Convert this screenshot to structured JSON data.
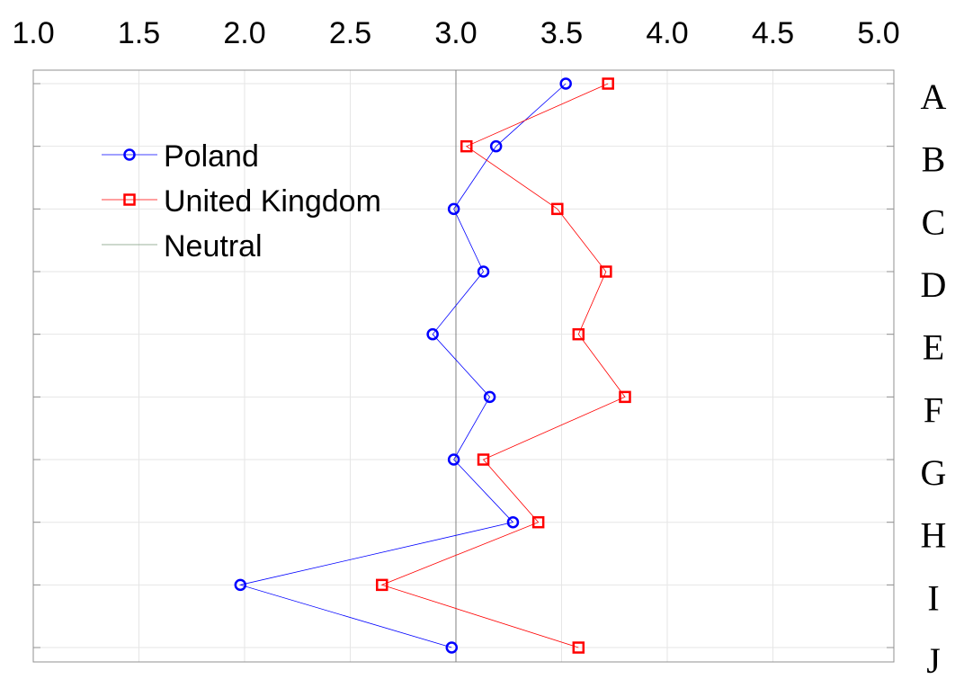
{
  "chart_data": {
    "type": "line",
    "title": "",
    "xlabel": "",
    "ylabel": "",
    "orientation": "horizontal-values",
    "xlim": [
      1.0,
      5.0
    ],
    "x_ticks": [
      "1.0",
      "1.5",
      "2.0",
      "2.5",
      "3.0",
      "3.5",
      "4.0",
      "4.5",
      "5.0"
    ],
    "categories": [
      "A",
      "B",
      "C",
      "D",
      "E",
      "F",
      "G",
      "H",
      "I",
      "J"
    ],
    "grid": true,
    "legend_position": "top-left",
    "series": [
      {
        "name": "Poland",
        "color": "#0000ff",
        "marker": "circle",
        "values": [
          3.52,
          3.19,
          2.99,
          3.13,
          2.89,
          3.16,
          2.99,
          3.27,
          1.98,
          2.98
        ]
      },
      {
        "name": "United Kingdom",
        "color": "#ff0000",
        "marker": "square",
        "values": [
          3.72,
          3.05,
          3.48,
          3.71,
          3.58,
          3.8,
          3.13,
          3.39,
          2.65,
          3.58
        ]
      }
    ],
    "reference_line": {
      "name": "Neutral",
      "value": 3.0,
      "color": "#808080"
    }
  }
}
